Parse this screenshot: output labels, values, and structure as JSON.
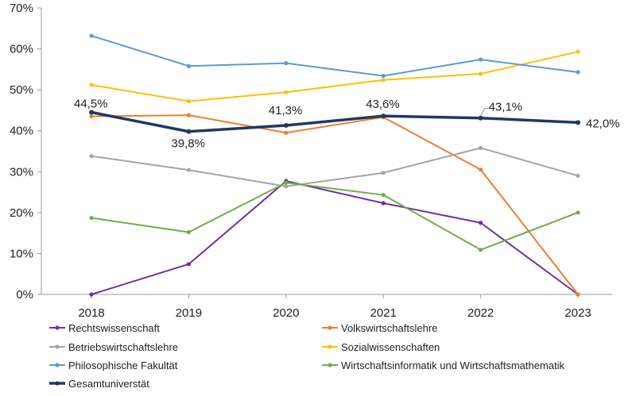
{
  "chart_data": {
    "type": "line",
    "title": "",
    "xlabel": "",
    "ylabel": "",
    "categories": [
      "2018",
      "2019",
      "2020",
      "2021",
      "2022",
      "2023"
    ],
    "ylim": [
      0,
      70
    ],
    "yticks": [
      0,
      10,
      20,
      30,
      40,
      50,
      60,
      70
    ],
    "ytick_labels": [
      "0%",
      "10%",
      "20%",
      "30%",
      "40%",
      "50%",
      "60%",
      "70%"
    ],
    "grid": false,
    "legend_position": "bottom",
    "series": [
      {
        "name": "Rechtswissenschaft",
        "color": "#7030A0",
        "values": [
          0,
          7.4,
          27.7,
          22.3,
          17.5,
          0
        ]
      },
      {
        "name": "Volkswirtschaftslehre",
        "color": "#ED7D31",
        "values": [
          43.5,
          43.8,
          39.5,
          43.3,
          30.5,
          0
        ]
      },
      {
        "name": "Betriebswirtschaftslehre",
        "color": "#A5A5A5",
        "values": [
          33.8,
          30.4,
          26.4,
          29.7,
          35.8,
          29
        ]
      },
      {
        "name": "Sozialwissenschaften",
        "color": "#FFC000",
        "values": [
          51.2,
          47.2,
          49.4,
          52.4,
          53.9,
          59.3
        ]
      },
      {
        "name": "Philosophische Fakultät",
        "color": "#5B9BD5",
        "values": [
          63.2,
          55.8,
          56.5,
          53.4,
          57.4,
          54.3
        ]
      },
      {
        "name": "Wirtschaftsinformatik und Wirtschaftsmathematik",
        "color": "#70AD47",
        "values": [
          18.7,
          15.2,
          27.3,
          24.3,
          10.9,
          20
        ]
      },
      {
        "name": "Gesamtuniverstät",
        "color": "#203864",
        "bold": true,
        "values": [
          44.5,
          39.8,
          41.3,
          43.6,
          43.1,
          42.0
        ],
        "data_labels": [
          "44,5%",
          "39,8%",
          "41,3%",
          "43,6%",
          "43,1%",
          "42,0%"
        ]
      }
    ]
  }
}
